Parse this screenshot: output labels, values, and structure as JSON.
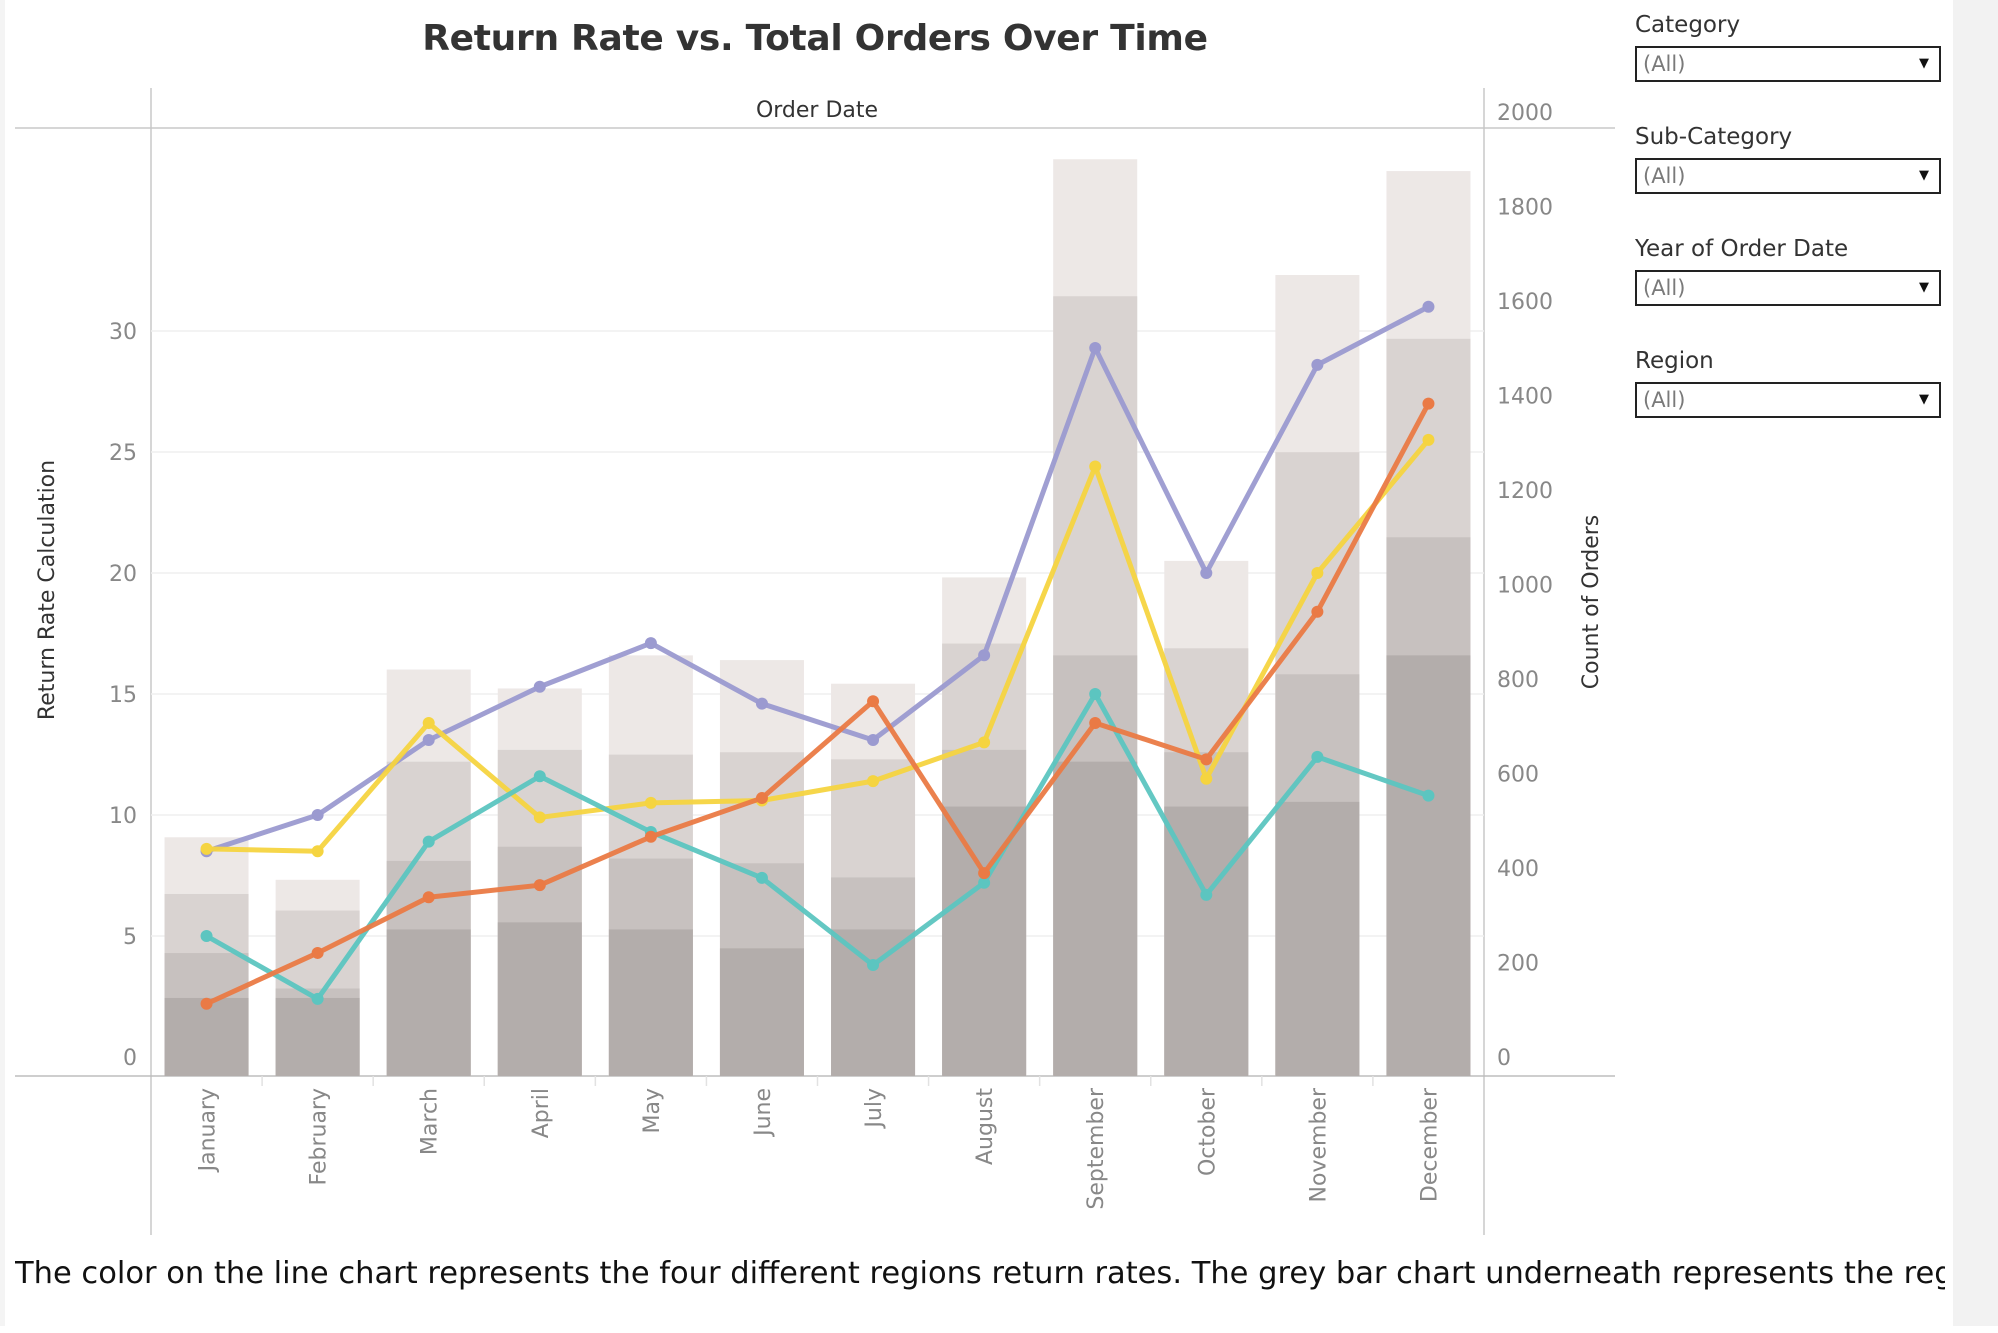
{
  "description": "The color on the line chart represents the four different regions return rates. The grey bar chart underneath represents the regions count of orders. These are used to highlight trends over time via order",
  "filters": [
    {
      "label": "Category",
      "value": "(All)"
    },
    {
      "label": "Sub-Category",
      "value": "(All)"
    },
    {
      "label": "Year of Order Date",
      "value": "(All)"
    },
    {
      "label": "Region",
      "value": "(All)"
    }
  ],
  "chart_data": {
    "type": "bar",
    "title": "Return Rate vs. Total Orders Over Time",
    "header": "Order Date",
    "ylabel": "Return Rate Calculation",
    "y2label": "Count of Orders",
    "ylim": [
      0,
      32
    ],
    "y2lim": [
      0,
      2000
    ],
    "yticks": [
      0,
      5,
      10,
      15,
      20,
      25,
      30
    ],
    "y2ticks": [
      0,
      200,
      400,
      600,
      800,
      1000,
      1200,
      1400,
      1600,
      1800,
      2000
    ],
    "categories": [
      "January",
      "February",
      "March",
      "April",
      "May",
      "June",
      "July",
      "August",
      "September",
      "October",
      "November",
      "December"
    ],
    "grid": true,
    "legend": "none",
    "bar_series": [
      {
        "values": [
          125,
          125,
          270,
          285,
          270,
          230,
          270,
          530,
          625,
          530,
          540,
          850
        ],
        "color": "#b3adab"
      },
      {
        "values": [
          220,
          145,
          415,
          445,
          420,
          410,
          380,
          650,
          850,
          645,
          810,
          1100
        ],
        "color": "#c7c1bf"
      },
      {
        "values": [
          345,
          310,
          625,
          650,
          640,
          645,
          630,
          875,
          1610,
          865,
          1280,
          1520
        ],
        "color": "#d9d3d1"
      },
      {
        "values": [
          465,
          375,
          820,
          780,
          850,
          840,
          790,
          1015,
          1900,
          1050,
          1655,
          1875
        ],
        "color": "#ede8e6"
      }
    ],
    "line_series": [
      {
        "values": [
          8.5,
          10.0,
          13.1,
          15.3,
          17.1,
          14.6,
          13.1,
          16.6,
          29.3,
          20.0,
          28.6,
          31.0
        ],
        "color": "#9b9ad0"
      },
      {
        "values": [
          8.6,
          8.5,
          13.8,
          9.9,
          10.5,
          10.6,
          11.4,
          13.0,
          24.4,
          11.5,
          20.0,
          25.5
        ],
        "color": "#f5d440"
      },
      {
        "values": [
          5.0,
          2.4,
          8.9,
          11.6,
          9.3,
          7.4,
          3.8,
          7.2,
          15.0,
          6.7,
          12.4,
          10.8
        ],
        "color": "#5cc5c0"
      },
      {
        "values": [
          2.2,
          4.3,
          6.6,
          7.1,
          9.1,
          10.7,
          14.7,
          7.6,
          13.8,
          12.3,
          18.4,
          27.0
        ],
        "color": "#ea7a45"
      }
    ]
  }
}
